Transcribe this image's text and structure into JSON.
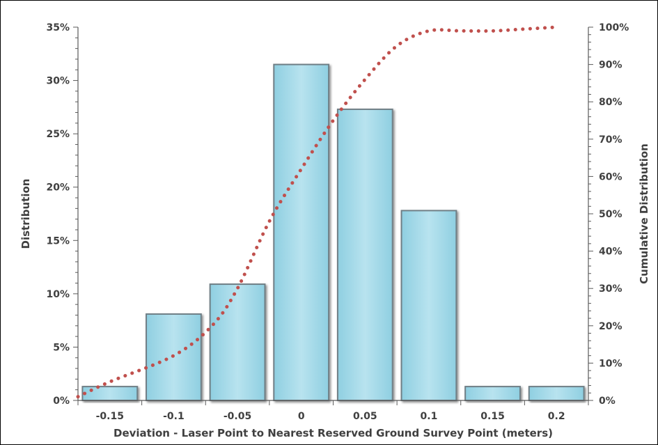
{
  "chart_data": {
    "type": "bar",
    "title": "",
    "xlabel": "Deviation - Laser Point to Nearest Reserved Ground Survey Point (meters)",
    "ylabel": "Distribution",
    "y2label": "Cumulative Distribution",
    "categories": [
      "-0.15",
      "-0.1",
      "-0.05",
      "0",
      "0.05",
      "0.1",
      "0.15",
      "0.2"
    ],
    "series": [
      {
        "type": "bar",
        "values": [
          1.3,
          8.1,
          10.9,
          31.5,
          27.3,
          17.8,
          1.3,
          1.3
        ]
      },
      {
        "type": "line",
        "style": "dotted",
        "axis": "secondary",
        "x": [
          -0.175,
          -0.15,
          -0.1,
          -0.07,
          -0.05,
          -0.025,
          0,
          0.025,
          0.05,
          0.075,
          0.1,
          0.125,
          0.15,
          0.175,
          0.2
        ],
        "values": [
          1,
          5,
          12,
          20,
          30,
          48,
          62,
          75,
          86,
          95,
          99,
          99,
          99,
          99.5,
          100
        ]
      }
    ],
    "yticks": [
      "0%",
      "5%",
      "10%",
      "15%",
      "20%",
      "25%",
      "30%",
      "35%"
    ],
    "ylim": [
      0,
      35
    ],
    "y2ticks": [
      "0%",
      "10%",
      "20%",
      "30%",
      "40%",
      "50%",
      "60%",
      "70%",
      "80%",
      "90%",
      "100%"
    ],
    "y2lim": [
      0,
      100
    ],
    "grid": false,
    "colors": {
      "bar_fill": "#a7dbea",
      "bar_edge": "#6f7f86",
      "line": "#c0504d",
      "axis": "#595959"
    }
  }
}
